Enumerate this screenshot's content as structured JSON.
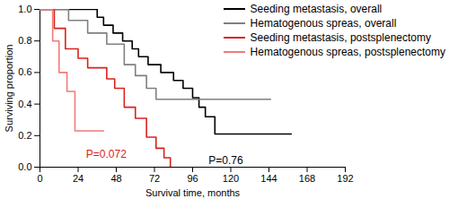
{
  "chart_data": {
    "type": "line",
    "x_label": "Survival time, months",
    "y_label": "Surviving proportion",
    "xlim": [
      0,
      192
    ],
    "xticks": [
      0,
      24,
      48,
      72,
      96,
      120,
      144,
      168,
      192
    ],
    "ylim": [
      0,
      1
    ],
    "yticks": [
      {
        "value": 0,
        "label": "0.0"
      },
      0.2,
      0.4,
      0.6,
      0.8,
      {
        "value": 1,
        "label": "1.0"
      }
    ],
    "legend": "upper right",
    "series": [
      {
        "name": "Seeding metastasis, overall",
        "color": "#000000",
        "line_style": "step",
        "x": [
          0,
          36,
          40,
          46,
          52,
          58,
          62,
          68,
          76,
          84,
          90,
          96,
          100,
          104,
          110,
          158
        ],
        "values": [
          1.0,
          0.95,
          0.9,
          0.85,
          0.8,
          0.75,
          0.7,
          0.65,
          0.6,
          0.55,
          0.5,
          0.44,
          0.38,
          0.32,
          0.21,
          0.21
        ]
      },
      {
        "name": "Hematogenous spreas, overall",
        "color": "#808080",
        "line_style": "step",
        "x": [
          0,
          18,
          30,
          42,
          53,
          60,
          67,
          73,
          145
        ],
        "values": [
          1.0,
          0.93,
          0.85,
          0.78,
          0.65,
          0.58,
          0.5,
          0.43,
          0.43
        ]
      },
      {
        "name": "Seeding metastasis, postsplenectomy",
        "color": "#d9221c",
        "line_style": "step",
        "x": [
          0,
          9,
          16,
          24,
          30,
          42,
          47,
          53,
          60,
          67,
          73,
          78,
          82
        ],
        "values": [
          1.0,
          0.88,
          0.75,
          0.69,
          0.63,
          0.56,
          0.5,
          0.38,
          0.31,
          0.19,
          0.12,
          0.06,
          0.0
        ]
      },
      {
        "name": "Hematogenous spreas, postsplenectomy",
        "color": "#f07a7a",
        "line_style": "step",
        "x": [
          0,
          8,
          12,
          17,
          22,
          40
        ],
        "values": [
          1.0,
          0.8,
          0.6,
          0.48,
          0.23,
          0.23
        ]
      }
    ],
    "annotations": [
      {
        "text": "P=0.072",
        "x": 29,
        "y": 0.08,
        "color": "#d9221c"
      },
      {
        "text": "P=0.76",
        "x": 106,
        "y": 0.04,
        "color": "#000000"
      }
    ]
  }
}
